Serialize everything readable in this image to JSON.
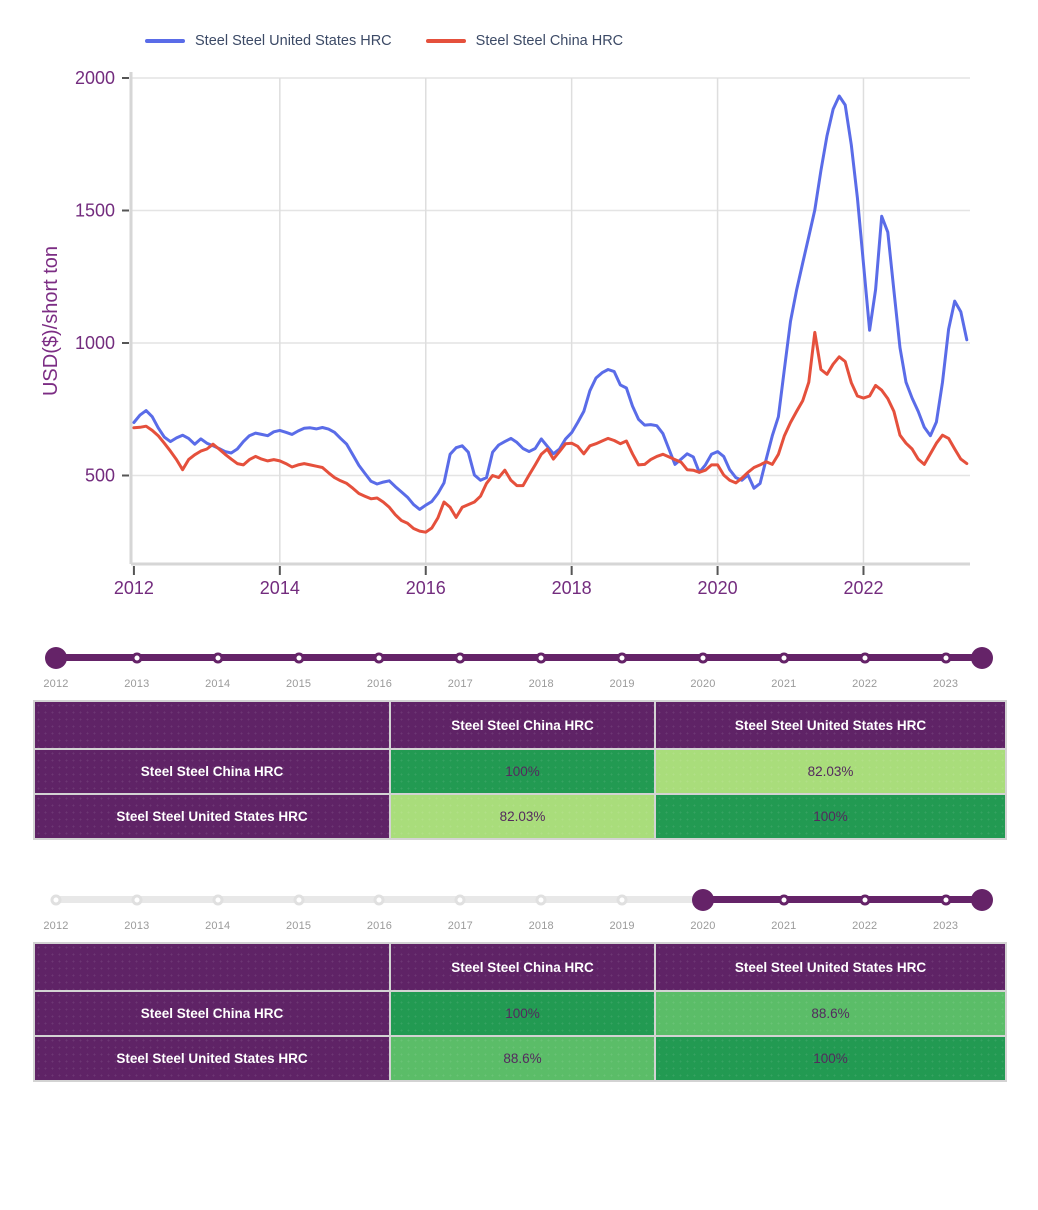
{
  "colors": {
    "blue_series": "#5A6CE8",
    "red_series": "#E5503C",
    "legend_text": "#3C4A66",
    "axis_text_purple": "#732C7E",
    "grid": "#E4E4E4",
    "axis_line": "#D6D6D6",
    "tick_mark": "#555555",
    "slider_purple": "#652368",
    "slider_inactive": "#E8E8E8",
    "slider_dot_inactive_border": "#E0E0E0",
    "slider_label_gray": "#9A9A9A",
    "table_purple": "#5F2366",
    "green_dark": "#229A52",
    "green_light": "#A9DD7B",
    "green_mid": "#5BBD68"
  },
  "chart": {
    "y_axis_label": "USD($)/short ton",
    "x_ticks": [
      2012,
      2014,
      2016,
      2018,
      2020,
      2022
    ],
    "y_ticks": [
      500,
      1000,
      1500,
      2000
    ],
    "x_range": [
      2011.96,
      2023.46
    ],
    "y_range": [
      166,
      2000
    ],
    "legend": [
      {
        "label": "Steel Steel United States HRC",
        "color": "#5A6CE8"
      },
      {
        "label": "Steel Steel China HRC",
        "color": "#E5503C"
      }
    ]
  },
  "chart_data": {
    "type": "line",
    "title": "",
    "xlabel": "",
    "ylabel": "USD($)/short ton",
    "x_start": "2012-01",
    "x_end": "2023-06",
    "x_interval": "monthly",
    "xlim": [
      2011.96,
      2023.46
    ],
    "ylim": [
      166,
      2000
    ],
    "grid": true,
    "legend_position": "top",
    "series": [
      {
        "name": "Steel Steel United States HRC",
        "color": "#5A6CE8",
        "values": [
          700,
          728,
          745,
          722,
          680,
          645,
          628,
          642,
          652,
          640,
          618,
          638,
          622,
          612,
          602,
          590,
          585,
          600,
          628,
          650,
          660,
          655,
          650,
          665,
          670,
          663,
          655,
          668,
          678,
          680,
          676,
          681,
          675,
          663,
          640,
          618,
          578,
          538,
          508,
          478,
          468,
          475,
          480,
          458,
          438,
          418,
          390,
          372,
          388,
          402,
          432,
          472,
          580,
          605,
          612,
          588,
          502,
          482,
          492,
          588,
          615,
          628,
          640,
          625,
          602,
          590,
          602,
          638,
          610,
          582,
          600,
          638,
          662,
          700,
          742,
          820,
          868,
          888,
          900,
          892,
          842,
          830,
          762,
          712,
          690,
          692,
          688,
          658,
          600,
          542,
          562,
          582,
          570,
          512,
          540,
          580,
          590,
          572,
          522,
          492,
          482,
          502,
          452,
          470,
          562,
          650,
          722,
          902,
          1082,
          1200,
          1302,
          1402,
          1502,
          1650,
          1782,
          1882,
          1932,
          1898,
          1748,
          1548,
          1298,
          1048,
          1202,
          1478,
          1418,
          1198,
          982,
          852,
          792,
          742,
          682,
          650,
          702,
          852,
          1052,
          1158,
          1118,
          1012
        ]
      },
      {
        "name": "Steel Steel China HRC",
        "color": "#E5503C",
        "values": [
          680,
          682,
          686,
          670,
          650,
          622,
          592,
          560,
          522,
          560,
          578,
          592,
          600,
          618,
          600,
          580,
          562,
          545,
          540,
          560,
          572,
          562,
          555,
          560,
          555,
          545,
          532,
          540,
          545,
          540,
          535,
          530,
          510,
          492,
          480,
          470,
          452,
          432,
          422,
          412,
          415,
          400,
          380,
          352,
          330,
          320,
          300,
          290,
          286,
          302,
          340,
          400,
          380,
          342,
          380,
          390,
          400,
          422,
          470,
          500,
          492,
          520,
          482,
          462,
          462,
          502,
          540,
          580,
          600,
          562,
          590,
          620,
          622,
          610,
          582,
          612,
          620,
          630,
          640,
          632,
          620,
          630,
          582,
          540,
          542,
          560,
          572,
          580,
          570,
          560,
          550,
          522,
          520,
          512,
          520,
          540,
          540,
          502,
          482,
          472,
          490,
          512,
          530,
          540,
          552,
          542,
          580,
          650,
          700,
          742,
          782,
          852,
          1040,
          900,
          882,
          920,
          948,
          930,
          850,
          800,
          792,
          800,
          840,
          822,
          790,
          742,
          652,
          622,
          600,
          562,
          542,
          582,
          622,
          652,
          640,
          600,
          562,
          545
        ]
      }
    ]
  },
  "sliders": [
    {
      "name": "full-range-slider",
      "years": [
        "2012",
        "2013",
        "2014",
        "2015",
        "2016",
        "2017",
        "2018",
        "2019",
        "2020",
        "2021",
        "2022",
        "2023"
      ],
      "active_start_index": 0,
      "selected_range_label": "2012 to end"
    },
    {
      "name": "recent-range-slider",
      "years": [
        "2012",
        "2013",
        "2014",
        "2015",
        "2016",
        "2017",
        "2018",
        "2019",
        "2020",
        "2021",
        "2022",
        "2023"
      ],
      "active_start_index": 8,
      "selected_range_label": "2020 to end"
    }
  ],
  "tables": [
    {
      "name": "correlation-table-full-range",
      "columns": [
        "",
        "Steel Steel China HRC",
        "Steel Steel United States HRC"
      ],
      "rows": [
        {
          "label": "Steel Steel China HRC",
          "cells": [
            {
              "value": "100%",
              "bg": "#229A52"
            },
            {
              "value": "82.03%",
              "bg": "#A9DD7B"
            }
          ]
        },
        {
          "label": "Steel Steel United States HRC",
          "cells": [
            {
              "value": "82.03%",
              "bg": "#A9DD7B"
            },
            {
              "value": "100%",
              "bg": "#229A52"
            }
          ]
        }
      ]
    },
    {
      "name": "correlation-table-2020-2023",
      "columns": [
        "",
        "Steel Steel China HRC",
        "Steel Steel United States HRC"
      ],
      "rows": [
        {
          "label": "Steel Steel China HRC",
          "cells": [
            {
              "value": "100%",
              "bg": "#229A52"
            },
            {
              "value": "88.6%",
              "bg": "#5BBD68"
            }
          ]
        },
        {
          "label": "Steel Steel United States HRC",
          "cells": [
            {
              "value": "88.6%",
              "bg": "#5BBD68"
            },
            {
              "value": "100%",
              "bg": "#229A52"
            }
          ]
        }
      ]
    }
  ]
}
